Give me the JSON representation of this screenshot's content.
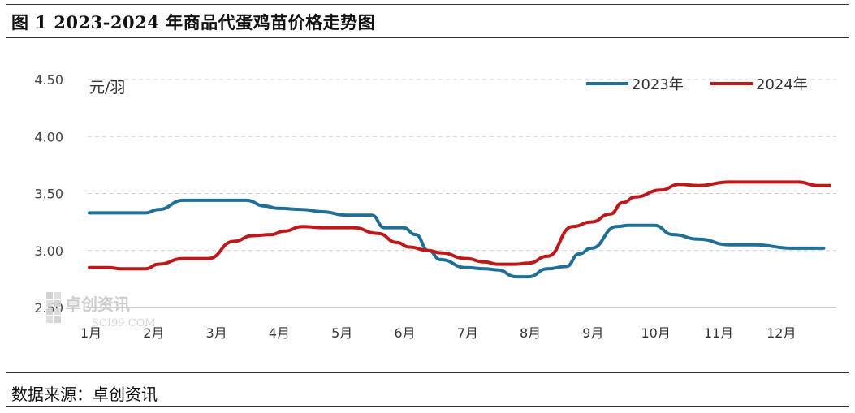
{
  "header": {
    "title": "图 1 2023-2024 年商品代蛋鸡苗价格走势图"
  },
  "footer": {
    "source": "数据来源：卓创资讯"
  },
  "watermark": {
    "name": "卓创资讯",
    "url": "SCI99.COM"
  },
  "chart_data": {
    "type": "line",
    "title": "",
    "ylabel": "元/羽",
    "xlabel": "",
    "ylim": [
      2.5,
      4.5
    ],
    "yticks": [
      "2.50",
      "3.00",
      "3.50",
      "4.00",
      "4.50"
    ],
    "ytick_values": [
      2.5,
      3.0,
      3.5,
      4.0,
      4.5
    ],
    "categories": [
      "1月",
      "2月",
      "3月",
      "4月",
      "5月",
      "6月",
      "7月",
      "8月",
      "9月",
      "10月",
      "11月",
      "12月"
    ],
    "grid": true,
    "legend_position": "top-right",
    "series": [
      {
        "name": "2023年",
        "color": "#1f6f97",
        "x": [
          0.0,
          0.5,
          0.9,
          1.1,
          1.5,
          1.9,
          2.5,
          2.8,
          3.0,
          3.4,
          3.7,
          4.1,
          4.5,
          4.7,
          5.0,
          5.2,
          5.4,
          5.6,
          6.0,
          6.3,
          6.5,
          6.8,
          7.0,
          7.3,
          7.6,
          7.8,
          8.0,
          8.4,
          8.6,
          9.0,
          9.3,
          9.7,
          10.2,
          10.6,
          11.2,
          11.5,
          11.7
        ],
        "values": [
          3.33,
          3.33,
          3.33,
          3.36,
          3.44,
          3.44,
          3.44,
          3.39,
          3.37,
          3.36,
          3.34,
          3.31,
          3.31,
          3.2,
          3.2,
          3.14,
          3.0,
          2.92,
          2.85,
          2.84,
          2.83,
          2.77,
          2.77,
          2.84,
          2.86,
          2.97,
          3.02,
          3.21,
          3.22,
          3.22,
          3.14,
          3.1,
          3.05,
          3.05,
          3.02,
          3.02,
          3.02
        ]
      },
      {
        "name": "2024年",
        "color": "#c0171b",
        "x": [
          0.0,
          0.3,
          0.5,
          0.9,
          1.1,
          1.5,
          1.9,
          2.3,
          2.6,
          2.9,
          3.1,
          3.4,
          3.7,
          4.2,
          4.6,
          4.9,
          5.1,
          5.4,
          5.6,
          6.0,
          6.3,
          6.5,
          6.8,
          7.0,
          7.3,
          7.7,
          8.0,
          8.3,
          8.5,
          8.7,
          9.1,
          9.4,
          9.7,
          10.2,
          10.6,
          11.0,
          11.3,
          11.6,
          11.8
        ],
        "values": [
          2.85,
          2.85,
          2.84,
          2.84,
          2.88,
          2.93,
          2.93,
          3.08,
          3.13,
          3.14,
          3.17,
          3.21,
          3.2,
          3.2,
          3.15,
          3.07,
          3.03,
          3.0,
          2.98,
          2.93,
          2.9,
          2.88,
          2.88,
          2.89,
          2.95,
          3.21,
          3.25,
          3.32,
          3.42,
          3.47,
          3.53,
          3.58,
          3.57,
          3.6,
          3.6,
          3.6,
          3.6,
          3.57,
          3.57
        ]
      }
    ]
  }
}
